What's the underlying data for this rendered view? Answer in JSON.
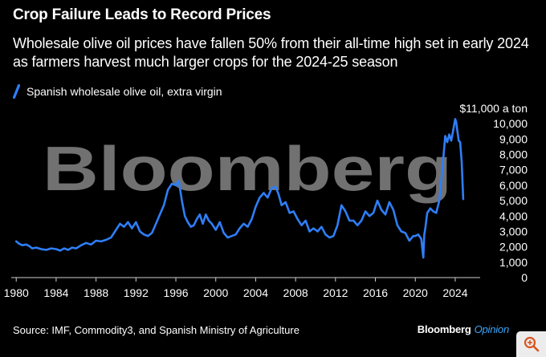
{
  "title": "Crop Failure Leads to Record Prices",
  "subtitle": "Wholesale olive oil prices have fallen 50% from their all-time high set in early 2024 as farmers harvest much larger crops for the 2024-25 season",
  "source": "Source: IMF, Commodity3, and Spanish Ministry of Agriculture",
  "brand": {
    "name": "Bloomberg",
    "section": "Opinion",
    "watermark": "Bloomberg"
  },
  "corner_icon": "zoom-magnifier-icon",
  "colors": {
    "background": "#000000",
    "series": "#2f7ef7",
    "text": "#ffffff",
    "axis": "#cfcfcf",
    "watermark": "#8a8a8a",
    "brand_opinion": "#3aa7ff"
  },
  "chart_data": {
    "type": "line",
    "title": "Crop Failure Leads to Record Prices",
    "xlabel": "",
    "ylabel": "",
    "y_unit_label": "$11,000 a ton",
    "xlim": [
      1979.5,
      2026.5
    ],
    "ylim": [
      0,
      11000
    ],
    "grid": false,
    "legend_position": "top-left",
    "x_ticks": [
      1980,
      1984,
      1988,
      1992,
      1996,
      2000,
      2004,
      2008,
      2012,
      2016,
      2020,
      2024
    ],
    "x_tick_labels": [
      "1980",
      "1984",
      "1988",
      "1992",
      "1996",
      "2000",
      "2004",
      "2008",
      "2012",
      "2016",
      "2020",
      "2024"
    ],
    "y_ticks": [
      0,
      1000,
      2000,
      3000,
      4000,
      5000,
      6000,
      7000,
      8000,
      9000,
      10000,
      11000
    ],
    "y_tick_labels": [
      "0",
      "1,000",
      "2,000",
      "3,000",
      "4,000",
      "5,000",
      "6,000",
      "7,000",
      "8,000",
      "9,000",
      "10,000",
      "$11,000 a ton"
    ],
    "series": [
      {
        "name": "Spanish wholesale olive oil, extra virgin",
        "x": [
          1980.0,
          1980.3,
          1980.6,
          1981.0,
          1981.3,
          1981.6,
          1982.0,
          1982.5,
          1983.0,
          1983.5,
          1984.0,
          1984.4,
          1984.8,
          1985.2,
          1985.6,
          1986.0,
          1986.5,
          1987.0,
          1987.5,
          1988.0,
          1988.5,
          1989.0,
          1989.5,
          1990.0,
          1990.4,
          1990.8,
          1991.2,
          1991.6,
          1992.0,
          1992.4,
          1992.8,
          1993.2,
          1993.6,
          1994.0,
          1994.4,
          1994.8,
          1995.2,
          1995.6,
          1996.0,
          1996.3,
          1996.6,
          1996.9,
          1997.2,
          1997.5,
          1997.8,
          1998.1,
          1998.4,
          1998.7,
          1999.0,
          1999.3,
          1999.6,
          2000.0,
          2000.4,
          2000.8,
          2001.2,
          2001.6,
          2002.0,
          2002.4,
          2002.8,
          2003.2,
          2003.6,
          2004.0,
          2004.4,
          2004.8,
          2005.2,
          2005.6,
          2006.0,
          2006.3,
          2006.6,
          2007.0,
          2007.4,
          2007.8,
          2008.2,
          2008.6,
          2009.0,
          2009.4,
          2009.8,
          2010.2,
          2010.6,
          2011.0,
          2011.4,
          2011.8,
          2012.2,
          2012.6,
          2013.0,
          2013.4,
          2013.8,
          2014.2,
          2014.6,
          2015.0,
          2015.4,
          2015.8,
          2016.2,
          2016.6,
          2017.0,
          2017.4,
          2017.8,
          2018.2,
          2018.6,
          2019.0,
          2019.4,
          2019.8,
          2020.0,
          2020.3,
          2020.6,
          2020.8,
          2020.9,
          2021.0,
          2021.2,
          2021.5,
          2021.8,
          2022.1,
          2022.4,
          2022.7,
          2023.0,
          2023.2,
          2023.4,
          2023.6,
          2023.8,
          2024.0,
          2024.1,
          2024.2,
          2024.35,
          2024.5,
          2024.65,
          2024.8
        ],
        "values": [
          2350,
          2200,
          2100,
          2150,
          2050,
          1900,
          1950,
          1850,
          1800,
          1900,
          1850,
          1750,
          1900,
          1800,
          1950,
          1900,
          2100,
          2250,
          2150,
          2400,
          2350,
          2450,
          2600,
          3100,
          3500,
          3300,
          3600,
          3200,
          3600,
          3000,
          2800,
          2700,
          2900,
          3500,
          4100,
          4700,
          5700,
          6100,
          6000,
          6300,
          5000,
          4000,
          3600,
          3300,
          3400,
          3800,
          4100,
          3500,
          4100,
          3700,
          3500,
          3100,
          3600,
          2900,
          2600,
          2700,
          2800,
          3200,
          3500,
          3300,
          3800,
          4600,
          5200,
          5500,
          5200,
          5800,
          5900,
          5400,
          4700,
          4900,
          4200,
          4300,
          3800,
          3400,
          3700,
          3000,
          3200,
          3000,
          3300,
          2800,
          2600,
          2700,
          3400,
          4700,
          4300,
          3700,
          3700,
          3400,
          3700,
          4300,
          4000,
          4200,
          5000,
          4400,
          4100,
          4900,
          4400,
          3400,
          3000,
          2900,
          2400,
          2700,
          2700,
          2800,
          2500,
          1300,
          2800,
          3200,
          4200,
          4500,
          4300,
          4200,
          5000,
          7000,
          9200,
          8800,
          9300,
          8900,
          9600,
          10300,
          10100,
          9600,
          8900,
          8800,
          7500,
          5100
        ]
      }
    ]
  }
}
